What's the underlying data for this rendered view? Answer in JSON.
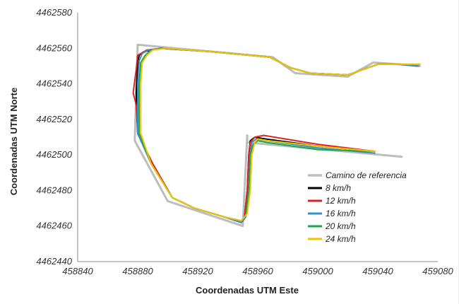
{
  "chart_data": {
    "type": "line",
    "title": "",
    "xlabel": "Coordenadas UTM Este",
    "ylabel": "Coordenadas UTM Norte",
    "xlim": [
      458840,
      459080
    ],
    "ylim": [
      4462440,
      4462580
    ],
    "xticks": [
      458840,
      458880,
      458920,
      458960,
      459000,
      459040,
      459080
    ],
    "yticks": [
      4462440,
      4462460,
      4462480,
      4462500,
      4462520,
      4462540,
      4462560,
      4462580
    ],
    "xtick_labels": [
      "458840",
      "458880",
      "458920",
      "458960",
      "459000",
      "459040",
      "459080"
    ],
    "ytick_labels": [
      "4462440",
      "4462460",
      "4462480",
      "4462500",
      "4462520",
      "4462540",
      "4462560",
      "4462580"
    ],
    "grid": false,
    "legend_position": "center-right",
    "series": [
      {
        "name": "Camino de referencia",
        "color": "#bdbdbd",
        "x": [
          459056,
          458953,
          458953,
          458950,
          458900,
          458878,
          458880,
          458970,
          458985,
          459020,
          459037,
          459068
        ],
        "y": [
          4462499,
          4462507,
          4462511,
          4462460,
          4462474,
          4462508,
          4462562,
          4462555,
          4462546,
          4462544,
          4462552,
          4462550
        ]
      },
      {
        "name": "8 km/h",
        "color": "#000000",
        "x": [
          459038,
          459000,
          458965,
          458958,
          458955,
          458954,
          458953,
          458951,
          458949,
          458938,
          458918,
          458903,
          458890,
          458880,
          458879,
          458880,
          458881,
          458884,
          458895,
          458930,
          458968,
          458982,
          458995,
          459020,
          459040,
          459055,
          459066
        ],
        "y": [
          4462502,
          4462505,
          4462509,
          4462510,
          4462508,
          4462500,
          4462480,
          4462464,
          4462462,
          4462465,
          4462470,
          4462476,
          4462495,
          4462512,
          4462535,
          4462552,
          4462556,
          4462558,
          4462560,
          4462558,
          4462555,
          4462549,
          4462546,
          4462545,
          4462551,
          4462551,
          4462550
        ]
      },
      {
        "name": "12 km/h",
        "color": "#e02020",
        "x": [
          459038,
          459000,
          458964,
          458958,
          458955,
          458954,
          458953,
          458951,
          458949,
          458938,
          458918,
          458903,
          458890,
          458880,
          458879,
          458877,
          458879,
          458880,
          458882,
          458886,
          458896,
          458930,
          458968,
          458982,
          458995,
          459020,
          459040,
          459055,
          459067
        ],
        "y": [
          4462502,
          4462506,
          4462511,
          4462510,
          4462507,
          4462500,
          4462480,
          4462464,
          4462462,
          4462465,
          4462470,
          4462476,
          4462495,
          4462512,
          4462528,
          4462535,
          4462548,
          4462556,
          4462557,
          4462559,
          4462560,
          4462558,
          4462555,
          4462549,
          4462546,
          4462545,
          4462551,
          4462551,
          4462550
        ]
      },
      {
        "name": "16 km/h",
        "color": "#3a8fc9",
        "x": [
          459038,
          459000,
          458966,
          458959,
          458956,
          458955,
          458954,
          458952,
          458949,
          458938,
          458918,
          458903,
          458889,
          458880,
          458880,
          458881,
          458883,
          458887,
          458897,
          458930,
          458968,
          458982,
          458995,
          459020,
          459040,
          459055,
          459067
        ],
        "y": [
          4462501,
          4462504,
          4462508,
          4462509,
          4462507,
          4462500,
          4462480,
          4462465,
          4462462,
          4462465,
          4462470,
          4462476,
          4462495,
          4462512,
          4462540,
          4462553,
          4462557,
          4462559,
          4462560,
          4462558,
          4462555,
          4462549,
          4462546,
          4462545,
          4462551,
          4462551,
          4462550
        ]
      },
      {
        "name": "20 km/h",
        "color": "#1aa64a",
        "x": [
          459038,
          459000,
          458966,
          458960,
          458957,
          458955,
          458954,
          458952,
          458949,
          458938,
          458918,
          458903,
          458889,
          458881,
          458881,
          458882,
          458885,
          458889,
          458898,
          458930,
          458968,
          458982,
          458995,
          459020,
          459040,
          459055,
          459068
        ],
        "y": [
          4462502,
          4462503,
          4462507,
          4462508,
          4462506,
          4462500,
          4462480,
          4462466,
          4462463,
          4462465,
          4462470,
          4462476,
          4462495,
          4462512,
          4462540,
          4462552,
          4462556,
          4462559,
          4462560,
          4462558,
          4462555,
          4462549,
          4462546,
          4462545,
          4462551,
          4462551,
          4462551
        ]
      },
      {
        "name": "24 km/h",
        "color": "#f2c200",
        "x": [
          459038,
          459000,
          458967,
          458960,
          458958,
          458956,
          458955,
          458953,
          458949,
          458938,
          458918,
          458903,
          458889,
          458882,
          458882,
          458883,
          458886,
          458890,
          458899,
          458930,
          458968,
          458982,
          458995,
          459020,
          459040,
          459055,
          459068
        ],
        "y": [
          4462502,
          4462505,
          4462508,
          4462509,
          4462507,
          4462500,
          4462480,
          4462467,
          4462463,
          4462465,
          4462470,
          4462476,
          4462495,
          4462512,
          4462540,
          4462552,
          4462556,
          4462559,
          4462560,
          4462558,
          4462555,
          4462549,
          4462546,
          4462545,
          4462551,
          4462551,
          4462551
        ]
      }
    ]
  }
}
